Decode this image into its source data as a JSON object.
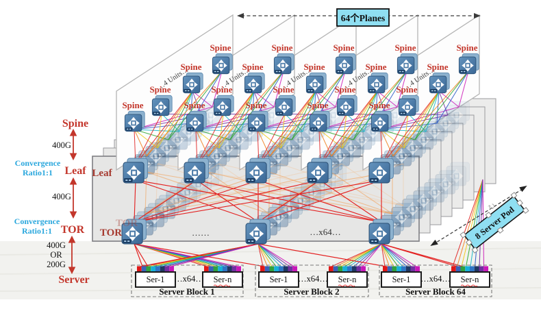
{
  "header": {
    "planes_box": "64个Planes"
  },
  "pod_tag": {
    "label": "8 Server Pod"
  },
  "legend": {
    "spine": "Spine",
    "leaf": "Leaf",
    "tor": "TOR",
    "server": "Server",
    "bw_spine_leaf": "400G",
    "bw_leaf_tor": "400G",
    "bw_tor_server_1": "400G",
    "bw_tor_server_2": "OR",
    "bw_tor_server_3": "200G",
    "conv1_line1": "Convergence",
    "conv1_line2": "Ratio1:1",
    "conv2_line1": "Convergence",
    "conv2_line2": "Ratio1:1"
  },
  "plane": {
    "spine_label": "Spine",
    "units_label": "…4 Units…"
  },
  "fabric": {
    "leaf_label": "Leaf",
    "tor_label": "TOR",
    "tor_ghost_label": "TOR",
    "tor_dots": "……",
    "tor_x64": "…x64…"
  },
  "servers": {
    "blocks": [
      {
        "name": "Server Block 1",
        "first": "Ser-1",
        "mid": "…x64…",
        "last": "Ser-n"
      },
      {
        "name": "Server Block 2",
        "first": "Ser-1",
        "mid": "…x64…",
        "last": "Ser-n"
      },
      {
        "name": "Server Block 64",
        "first": "Ser-1",
        "mid": "…x64…",
        "last": "Ser-n"
      }
    ]
  },
  "colors": {
    "label_red": "#c3362b",
    "cyan_text": "#2aa7dd",
    "box_cyan": "#8fdff2",
    "mesh_red": "#e32222",
    "mesh_orange": "#f2a45e",
    "rainbow": [
      "#e02222",
      "#f08020",
      "#eec816",
      "#2fa82f",
      "#18b8c8",
      "#2858c8",
      "#7030a0",
      "#cc1ab8"
    ],
    "server_bar": [
      "#e01818",
      "#3a62b8",
      "#2fa040",
      "#18b0d8",
      "#2e75c6",
      "#1f3864",
      "#7030a0",
      "#c818b8"
    ]
  }
}
